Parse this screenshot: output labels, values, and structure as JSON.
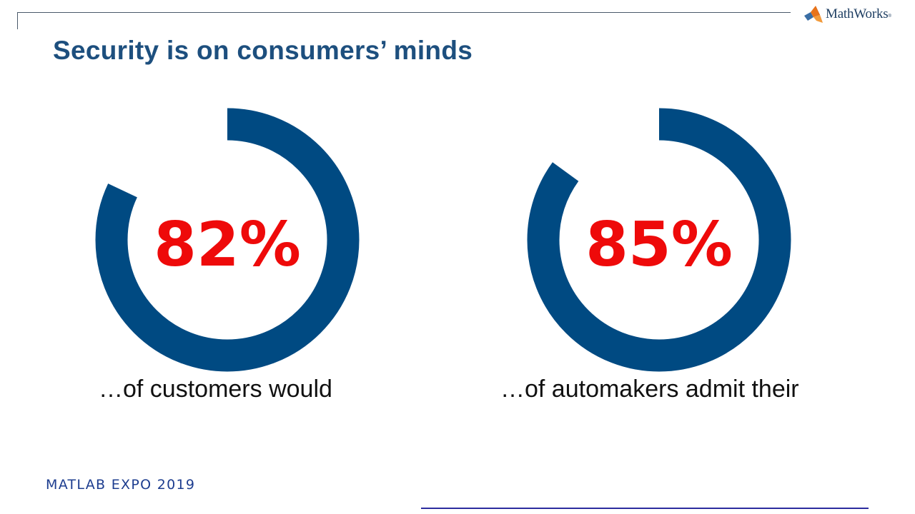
{
  "header": {
    "logo_text": "MathWorks",
    "logo_reg": "®",
    "title": "Security is on consumers’ minds"
  },
  "footer": {
    "event": "MATLAB EXPO 2019"
  },
  "colors": {
    "ring": "#004a82",
    "value_text": "#ee0a0a",
    "title": "#1d4f7e"
  },
  "chart_data": [
    {
      "type": "pie",
      "variant": "donut",
      "value": 82,
      "value_label": "82%",
      "caption": "…of customers would"
    },
    {
      "type": "pie",
      "variant": "donut",
      "value": 85,
      "value_label": "85%",
      "caption": "…of automakers admit their"
    }
  ]
}
